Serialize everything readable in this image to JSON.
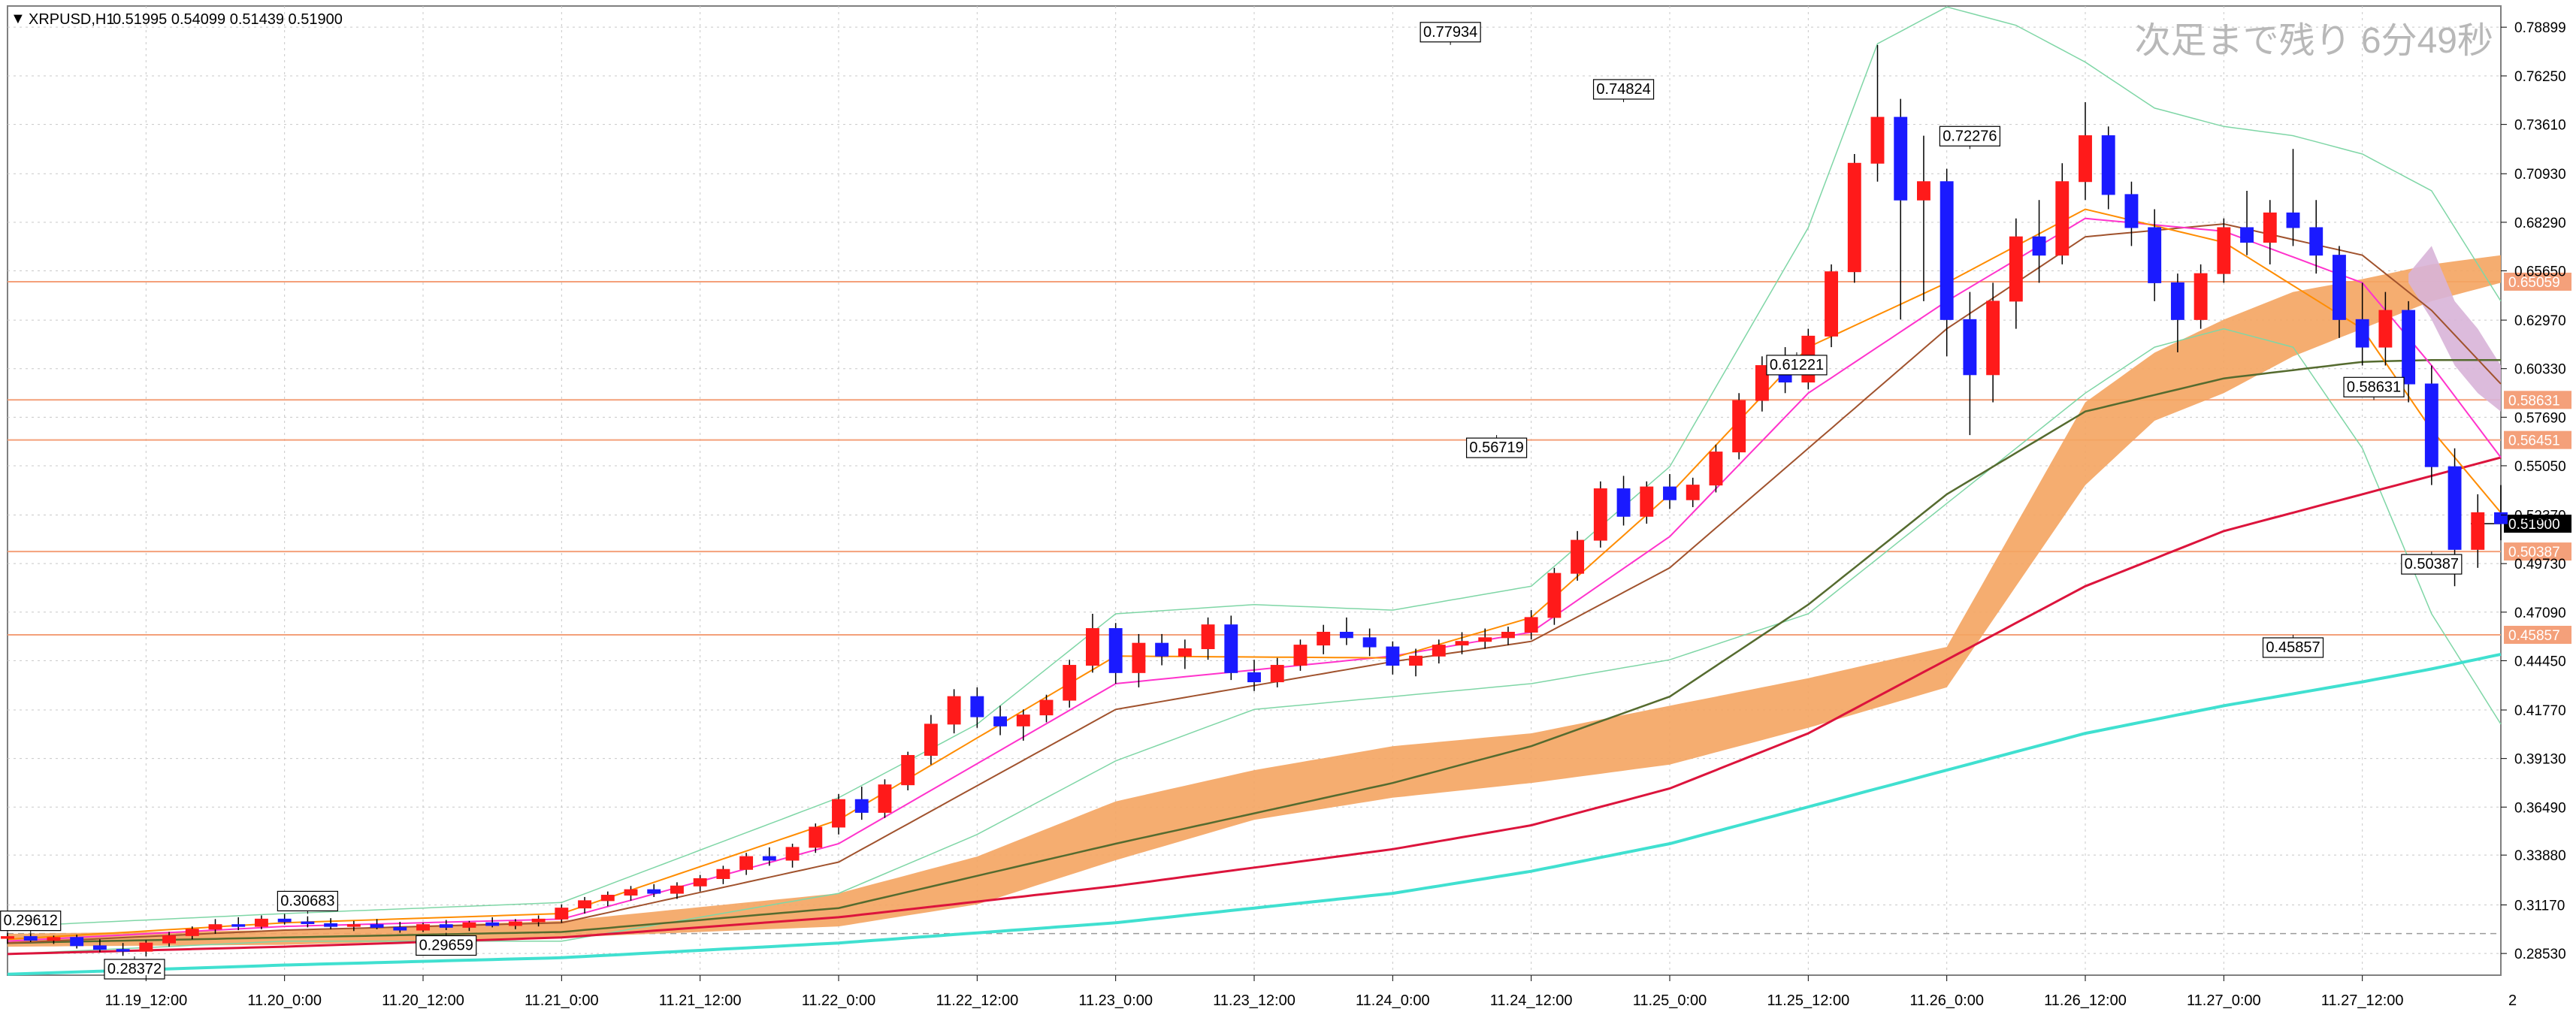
{
  "header": {
    "symbol": "XRPUSD,H1",
    "ohlc": "0.51995 0.54099 0.51439 0.51900"
  },
  "timer": "次足まで残り 6分49秒",
  "colors": {
    "bull": "#ff1a1a",
    "bear": "#1a1aff",
    "cloud": "#f4a460",
    "cloud_future": "#d8b4d8",
    "ma_fast": "#ff8c00",
    "ma_mid": "#ff33cc",
    "ma_slow": "#a0522d",
    "ma_green": "#556b2f",
    "ma_red": "#dc143c",
    "ma_cyan": "#40e0d0",
    "bb": "#7fd6a6",
    "level_line": "#f4a07a",
    "level_tag": "#f4a07a",
    "grid": "#c8c8c8",
    "current_price_tag": "#000000"
  },
  "chart_data": {
    "type": "candlestick",
    "title": "XRPUSD,H1",
    "ohlc_readout": [
      0.51995,
      0.54099,
      0.51439,
      0.519
    ],
    "x_tick_labels": [
      "11.19_12:00",
      "11.20_0:00",
      "11.20_12:00",
      "11.21_0:00",
      "11.21_12:00",
      "11.22_0:00",
      "11.22_12:00",
      "11.23_0:00",
      "11.23_12:00",
      "11.24_0:00",
      "11.24_12:00",
      "11.25_0:00",
      "11.25_12:00",
      "11.26_0:00",
      "11.26_12:00",
      "11.27_0:00",
      "11.27_12:00"
    ],
    "y_tick_labels": [
      "0.78899",
      "0.76250",
      "0.73610",
      "0.70930",
      "0.68290",
      "0.65650",
      "0.62970",
      "0.60330",
      "0.57690",
      "0.55050",
      "0.52370",
      "0.49730",
      "0.47090",
      "0.44450",
      "0.41770",
      "0.39130",
      "0.36490",
      "0.33880",
      "0.31170",
      "0.28530"
    ],
    "ylim": [
      0.2735,
      0.8005
    ],
    "x_range_hours": [
      -12,
      204
    ],
    "corner_label": "2",
    "current_price": "0.51900",
    "horizontal_levels": [
      "0.65059",
      "0.58631",
      "0.56451",
      "0.50387",
      "0.45857"
    ],
    "dashed_level": 0.2961,
    "callouts": [
      {
        "label": "0.29612",
        "t": -10,
        "price": 0.29612,
        "dir": "up"
      },
      {
        "label": "0.28372",
        "t": -1,
        "price": 0.28372,
        "dir": "down"
      },
      {
        "label": "0.30683",
        "t": 14,
        "price": 0.30683,
        "dir": "up"
      },
      {
        "label": "0.29659",
        "t": 26,
        "price": 0.29659,
        "dir": "down"
      },
      {
        "label": "0.77934",
        "t": 113,
        "price": 0.77934,
        "dir": "up"
      },
      {
        "label": "0.56719",
        "t": 117,
        "price": 0.56719,
        "dir": "down"
      },
      {
        "label": "0.74824",
        "t": 128,
        "price": 0.74824,
        "dir": "up"
      },
      {
        "label": "0.61221",
        "t": 143,
        "price": 0.61221,
        "dir": "down"
      },
      {
        "label": "0.72276",
        "t": 158,
        "price": 0.72276,
        "dir": "up"
      },
      {
        "label": "0.45857",
        "t": 186,
        "price": 0.45857,
        "dir": "down"
      },
      {
        "label": "0.58631",
        "t": 193,
        "price": 0.58631,
        "dir": "up"
      },
      {
        "label": "0.50387",
        "t": 198,
        "price": 0.50387,
        "dir": "down"
      }
    ],
    "candles_sampled_every_2h": [
      {
        "t": -12,
        "o": 0.2935,
        "h": 0.2965,
        "l": 0.2905,
        "c": 0.2945
      },
      {
        "t": -10,
        "o": 0.2945,
        "h": 0.2961,
        "l": 0.2915,
        "c": 0.2925
      },
      {
        "t": -8,
        "o": 0.2925,
        "h": 0.295,
        "l": 0.2905,
        "c": 0.294
      },
      {
        "t": -6,
        "o": 0.294,
        "h": 0.2955,
        "l": 0.288,
        "c": 0.2895
      },
      {
        "t": -4,
        "o": 0.2895,
        "h": 0.293,
        "l": 0.286,
        "c": 0.2875
      },
      {
        "t": -2,
        "o": 0.2875,
        "h": 0.291,
        "l": 0.284,
        "c": 0.2865
      },
      {
        "t": 0,
        "o": 0.2865,
        "h": 0.2925,
        "l": 0.2837,
        "c": 0.291
      },
      {
        "t": 2,
        "o": 0.291,
        "h": 0.297,
        "l": 0.289,
        "c": 0.295
      },
      {
        "t": 4,
        "o": 0.295,
        "h": 0.3,
        "l": 0.293,
        "c": 0.2985
      },
      {
        "t": 6,
        "o": 0.2985,
        "h": 0.304,
        "l": 0.296,
        "c": 0.301
      },
      {
        "t": 8,
        "o": 0.301,
        "h": 0.305,
        "l": 0.298,
        "c": 0.3
      },
      {
        "t": 10,
        "o": 0.3,
        "h": 0.306,
        "l": 0.2985,
        "c": 0.304
      },
      {
        "t": 12,
        "o": 0.304,
        "h": 0.3068,
        "l": 0.301,
        "c": 0.3025
      },
      {
        "t": 14,
        "o": 0.3025,
        "h": 0.3055,
        "l": 0.2995,
        "c": 0.3015
      },
      {
        "t": 16,
        "o": 0.3015,
        "h": 0.3045,
        "l": 0.2985,
        "c": 0.3
      },
      {
        "t": 18,
        "o": 0.3,
        "h": 0.303,
        "l": 0.2975,
        "c": 0.301
      },
      {
        "t": 20,
        "o": 0.301,
        "h": 0.304,
        "l": 0.2985,
        "c": 0.2995
      },
      {
        "t": 22,
        "o": 0.2995,
        "h": 0.3025,
        "l": 0.2966,
        "c": 0.298
      },
      {
        "t": 24,
        "o": 0.298,
        "h": 0.302,
        "l": 0.297,
        "c": 0.301
      },
      {
        "t": 26,
        "o": 0.301,
        "h": 0.3035,
        "l": 0.298,
        "c": 0.2995
      },
      {
        "t": 28,
        "o": 0.2995,
        "h": 0.303,
        "l": 0.2975,
        "c": 0.302
      },
      {
        "t": 30,
        "o": 0.302,
        "h": 0.305,
        "l": 0.2995,
        "c": 0.3005
      },
      {
        "t": 32,
        "o": 0.3005,
        "h": 0.304,
        "l": 0.2985,
        "c": 0.3025
      },
      {
        "t": 34,
        "o": 0.3025,
        "h": 0.306,
        "l": 0.3,
        "c": 0.304
      },
      {
        "t": 36,
        "o": 0.304,
        "h": 0.312,
        "l": 0.302,
        "c": 0.31
      },
      {
        "t": 38,
        "o": 0.31,
        "h": 0.316,
        "l": 0.307,
        "c": 0.314
      },
      {
        "t": 40,
        "o": 0.314,
        "h": 0.319,
        "l": 0.311,
        "c": 0.317
      },
      {
        "t": 42,
        "o": 0.317,
        "h": 0.322,
        "l": 0.314,
        "c": 0.32
      },
      {
        "t": 44,
        "o": 0.32,
        "h": 0.323,
        "l": 0.316,
        "c": 0.318
      },
      {
        "t": 46,
        "o": 0.318,
        "h": 0.324,
        "l": 0.315,
        "c": 0.322
      },
      {
        "t": 48,
        "o": 0.322,
        "h": 0.328,
        "l": 0.319,
        "c": 0.326
      },
      {
        "t": 50,
        "o": 0.326,
        "h": 0.333,
        "l": 0.323,
        "c": 0.331
      },
      {
        "t": 52,
        "o": 0.331,
        "h": 0.34,
        "l": 0.328,
        "c": 0.338
      },
      {
        "t": 54,
        "o": 0.338,
        "h": 0.343,
        "l": 0.333,
        "c": 0.336
      },
      {
        "t": 56,
        "o": 0.336,
        "h": 0.345,
        "l": 0.332,
        "c": 0.343
      },
      {
        "t": 58,
        "o": 0.343,
        "h": 0.356,
        "l": 0.34,
        "c": 0.354
      },
      {
        "t": 60,
        "o": 0.354,
        "h": 0.372,
        "l": 0.35,
        "c": 0.369
      },
      {
        "t": 62,
        "o": 0.369,
        "h": 0.376,
        "l": 0.358,
        "c": 0.362
      },
      {
        "t": 64,
        "o": 0.362,
        "h": 0.38,
        "l": 0.359,
        "c": 0.377
      },
      {
        "t": 66,
        "o": 0.377,
        "h": 0.395,
        "l": 0.374,
        "c": 0.393
      },
      {
        "t": 68,
        "o": 0.393,
        "h": 0.415,
        "l": 0.388,
        "c": 0.41
      },
      {
        "t": 70,
        "o": 0.41,
        "h": 0.429,
        "l": 0.405,
        "c": 0.425
      },
      {
        "t": 72,
        "o": 0.425,
        "h": 0.43,
        "l": 0.408,
        "c": 0.414
      },
      {
        "t": 74,
        "o": 0.414,
        "h": 0.42,
        "l": 0.404,
        "c": 0.409
      },
      {
        "t": 76,
        "o": 0.409,
        "h": 0.418,
        "l": 0.401,
        "c": 0.415
      },
      {
        "t": 78,
        "o": 0.415,
        "h": 0.426,
        "l": 0.411,
        "c": 0.423
      },
      {
        "t": 80,
        "o": 0.423,
        "h": 0.445,
        "l": 0.419,
        "c": 0.442
      },
      {
        "t": 82,
        "o": 0.442,
        "h": 0.47,
        "l": 0.438,
        "c": 0.462
      },
      {
        "t": 84,
        "o": 0.462,
        "h": 0.465,
        "l": 0.432,
        "c": 0.438
      },
      {
        "t": 86,
        "o": 0.438,
        "h": 0.459,
        "l": 0.43,
        "c": 0.454
      },
      {
        "t": 88,
        "o": 0.454,
        "h": 0.459,
        "l": 0.442,
        "c": 0.447
      },
      {
        "t": 90,
        "o": 0.447,
        "h": 0.456,
        "l": 0.44,
        "c": 0.451
      },
      {
        "t": 92,
        "o": 0.451,
        "h": 0.468,
        "l": 0.445,
        "c": 0.464
      },
      {
        "t": 94,
        "o": 0.464,
        "h": 0.469,
        "l": 0.434,
        "c": 0.438
      },
      {
        "t": 96,
        "o": 0.438,
        "h": 0.445,
        "l": 0.428,
        "c": 0.433
      },
      {
        "t": 98,
        "o": 0.433,
        "h": 0.446,
        "l": 0.43,
        "c": 0.442
      },
      {
        "t": 100,
        "o": 0.442,
        "h": 0.456,
        "l": 0.439,
        "c": 0.453
      },
      {
        "t": 102,
        "o": 0.453,
        "h": 0.464,
        "l": 0.448,
        "c": 0.46
      },
      {
        "t": 104,
        "o": 0.46,
        "h": 0.468,
        "l": 0.453,
        "c": 0.457
      },
      {
        "t": 106,
        "o": 0.457,
        "h": 0.462,
        "l": 0.447,
        "c": 0.452
      },
      {
        "t": 108,
        "o": 0.452,
        "h": 0.455,
        "l": 0.437,
        "c": 0.442
      },
      {
        "t": 110,
        "o": 0.442,
        "h": 0.451,
        "l": 0.436,
        "c": 0.447
      },
      {
        "t": 112,
        "o": 0.447,
        "h": 0.456,
        "l": 0.443,
        "c": 0.453
      },
      {
        "t": 114,
        "o": 0.453,
        "h": 0.46,
        "l": 0.448,
        "c": 0.455
      },
      {
        "t": 116,
        "o": 0.455,
        "h": 0.462,
        "l": 0.451,
        "c": 0.457
      },
      {
        "t": 118,
        "o": 0.457,
        "h": 0.463,
        "l": 0.453,
        "c": 0.46
      },
      {
        "t": 120,
        "o": 0.46,
        "h": 0.472,
        "l": 0.456,
        "c": 0.468
      },
      {
        "t": 122,
        "o": 0.468,
        "h": 0.495,
        "l": 0.464,
        "c": 0.492
      },
      {
        "t": 124,
        "o": 0.492,
        "h": 0.515,
        "l": 0.488,
        "c": 0.51
      },
      {
        "t": 126,
        "o": 0.51,
        "h": 0.542,
        "l": 0.506,
        "c": 0.538
      },
      {
        "t": 128,
        "o": 0.538,
        "h": 0.545,
        "l": 0.518,
        "c": 0.523
      },
      {
        "t": 130,
        "o": 0.523,
        "h": 0.542,
        "l": 0.519,
        "c": 0.539
      },
      {
        "t": 132,
        "o": 0.539,
        "h": 0.546,
        "l": 0.527,
        "c": 0.532
      },
      {
        "t": 134,
        "o": 0.532,
        "h": 0.544,
        "l": 0.528,
        "c": 0.54
      },
      {
        "t": 136,
        "o": 0.54,
        "h": 0.562,
        "l": 0.536,
        "c": 0.558
      },
      {
        "t": 138,
        "o": 0.558,
        "h": 0.59,
        "l": 0.554,
        "c": 0.586
      },
      {
        "t": 140,
        "o": 0.586,
        "h": 0.61,
        "l": 0.58,
        "c": 0.605
      },
      {
        "t": 142,
        "o": 0.605,
        "h": 0.615,
        "l": 0.59,
        "c": 0.596
      },
      {
        "t": 144,
        "o": 0.596,
        "h": 0.625,
        "l": 0.592,
        "c": 0.621
      },
      {
        "t": 146,
        "o": 0.621,
        "h": 0.66,
        "l": 0.615,
        "c": 0.656
      },
      {
        "t": 148,
        "o": 0.656,
        "h": 0.72,
        "l": 0.65,
        "c": 0.715
      },
      {
        "t": 150,
        "o": 0.715,
        "h": 0.7793,
        "l": 0.705,
        "c": 0.74
      },
      {
        "t": 152,
        "o": 0.74,
        "h": 0.75,
        "l": 0.63,
        "c": 0.695
      },
      {
        "t": 154,
        "o": 0.695,
        "h": 0.73,
        "l": 0.64,
        "c": 0.705
      },
      {
        "t": 156,
        "o": 0.705,
        "h": 0.712,
        "l": 0.61,
        "c": 0.63
      },
      {
        "t": 158,
        "o": 0.63,
        "h": 0.645,
        "l": 0.5672,
        "c": 0.6
      },
      {
        "t": 160,
        "o": 0.6,
        "h": 0.65,
        "l": 0.585,
        "c": 0.64
      },
      {
        "t": 162,
        "o": 0.64,
        "h": 0.685,
        "l": 0.625,
        "c": 0.675
      },
      {
        "t": 164,
        "o": 0.675,
        "h": 0.695,
        "l": 0.65,
        "c": 0.665
      },
      {
        "t": 166,
        "o": 0.665,
        "h": 0.715,
        "l": 0.66,
        "c": 0.705
      },
      {
        "t": 168,
        "o": 0.705,
        "h": 0.7482,
        "l": 0.695,
        "c": 0.73
      },
      {
        "t": 170,
        "o": 0.73,
        "h": 0.735,
        "l": 0.69,
        "c": 0.698
      },
      {
        "t": 172,
        "o": 0.698,
        "h": 0.705,
        "l": 0.67,
        "c": 0.68
      },
      {
        "t": 174,
        "o": 0.68,
        "h": 0.69,
        "l": 0.64,
        "c": 0.65
      },
      {
        "t": 176,
        "o": 0.65,
        "h": 0.655,
        "l": 0.6122,
        "c": 0.63
      },
      {
        "t": 178,
        "o": 0.63,
        "h": 0.66,
        "l": 0.625,
        "c": 0.655
      },
      {
        "t": 180,
        "o": 0.655,
        "h": 0.685,
        "l": 0.65,
        "c": 0.68
      },
      {
        "t": 182,
        "o": 0.68,
        "h": 0.7,
        "l": 0.665,
        "c": 0.672
      },
      {
        "t": 184,
        "o": 0.672,
        "h": 0.695,
        "l": 0.66,
        "c": 0.688
      },
      {
        "t": 186,
        "o": 0.688,
        "h": 0.7228,
        "l": 0.67,
        "c": 0.68
      },
      {
        "t": 188,
        "o": 0.68,
        "h": 0.695,
        "l": 0.655,
        "c": 0.665
      },
      {
        "t": 190,
        "o": 0.665,
        "h": 0.67,
        "l": 0.62,
        "c": 0.63
      },
      {
        "t": 192,
        "o": 0.63,
        "h": 0.65,
        "l": 0.605,
        "c": 0.615
      },
      {
        "t": 194,
        "o": 0.615,
        "h": 0.645,
        "l": 0.605,
        "c": 0.635
      },
      {
        "t": 196,
        "o": 0.635,
        "h": 0.64,
        "l": 0.585,
        "c": 0.595
      },
      {
        "t": 198,
        "o": 0.595,
        "h": 0.605,
        "l": 0.54,
        "c": 0.55
      },
      {
        "t": 200,
        "o": 0.55,
        "h": 0.56,
        "l": 0.485,
        "c": 0.505
      },
      {
        "t": 202,
        "o": 0.505,
        "h": 0.535,
        "l": 0.495,
        "c": 0.525
      },
      {
        "t": 204,
        "o": 0.525,
        "h": 0.54,
        "l": 0.51,
        "c": 0.519
      }
    ],
    "bollinger_sampled": {
      "t": [
        -12,
        12,
        36,
        60,
        72,
        84,
        96,
        108,
        120,
        132,
        144,
        150,
        156,
        162,
        168,
        174,
        180,
        186,
        192,
        198,
        204
      ],
      "upper": [
        0.3,
        0.307,
        0.313,
        0.37,
        0.41,
        0.47,
        0.475,
        0.472,
        0.485,
        0.55,
        0.68,
        0.78,
        0.8,
        0.79,
        0.77,
        0.745,
        0.735,
        0.73,
        0.72,
        0.7,
        0.64
      ],
      "lower": [
        0.285,
        0.292,
        0.292,
        0.318,
        0.35,
        0.39,
        0.418,
        0.425,
        0.432,
        0.445,
        0.47,
        0.5,
        0.53,
        0.56,
        0.59,
        0.615,
        0.625,
        0.615,
        0.56,
        0.47,
        0.41
      ]
    },
    "ma_sampled": {
      "t": [
        -12,
        12,
        36,
        60,
        84,
        108,
        120,
        132,
        144,
        156,
        168,
        180,
        192,
        198,
        204
      ],
      "fast": [
        0.293,
        0.302,
        0.307,
        0.358,
        0.447,
        0.446,
        0.468,
        0.535,
        0.615,
        0.65,
        0.69,
        0.672,
        0.625,
        0.57,
        0.525
      ],
      "mid": [
        0.292,
        0.3,
        0.304,
        0.345,
        0.432,
        0.447,
        0.46,
        0.512,
        0.59,
        0.64,
        0.685,
        0.678,
        0.65,
        0.605,
        0.555
      ],
      "slow": [
        0.291,
        0.298,
        0.302,
        0.335,
        0.418,
        0.444,
        0.455,
        0.495,
        0.56,
        0.625,
        0.675,
        0.682,
        0.665,
        0.635,
        0.595
      ],
      "green": [
        0.291,
        0.294,
        0.297,
        0.31,
        0.345,
        0.378,
        0.398,
        0.425,
        0.475,
        0.535,
        0.58,
        0.598,
        0.607,
        0.608,
        0.608
      ],
      "red": [
        0.285,
        0.289,
        0.294,
        0.305,
        0.322,
        0.342,
        0.355,
        0.375,
        0.405,
        0.445,
        0.485,
        0.515,
        0.535,
        0.545,
        0.555
      ],
      "cyan": [
        0.274,
        0.279,
        0.283,
        0.291,
        0.302,
        0.318,
        0.33,
        0.345,
        0.365,
        0.385,
        0.405,
        0.42,
        0.433,
        0.44,
        0.448
      ]
    },
    "ichimoku_cloud_sampled": {
      "t": [
        -12,
        12,
        36,
        60,
        72,
        84,
        96,
        108,
        120,
        132,
        144,
        156,
        168,
        174,
        180,
        186,
        192,
        198,
        204
      ],
      "top": [
        0.296,
        0.298,
        0.303,
        0.318,
        0.338,
        0.368,
        0.385,
        0.398,
        0.405,
        0.42,
        0.435,
        0.452,
        0.585,
        0.612,
        0.63,
        0.645,
        0.652,
        0.66,
        0.665
      ],
      "bottom": [
        0.289,
        0.29,
        0.294,
        0.3,
        0.312,
        0.336,
        0.358,
        0.37,
        0.378,
        0.388,
        0.408,
        0.43,
        0.54,
        0.575,
        0.59,
        0.61,
        0.625,
        0.64,
        0.65
      ]
    },
    "future_cloud_sampled": {
      "t": [
        196,
        198,
        200,
        202,
        204
      ],
      "top": [
        0.655,
        0.67,
        0.64,
        0.625,
        0.605
      ],
      "bottom": [
        0.65,
        0.63,
        0.605,
        0.59,
        0.58
      ]
    }
  }
}
